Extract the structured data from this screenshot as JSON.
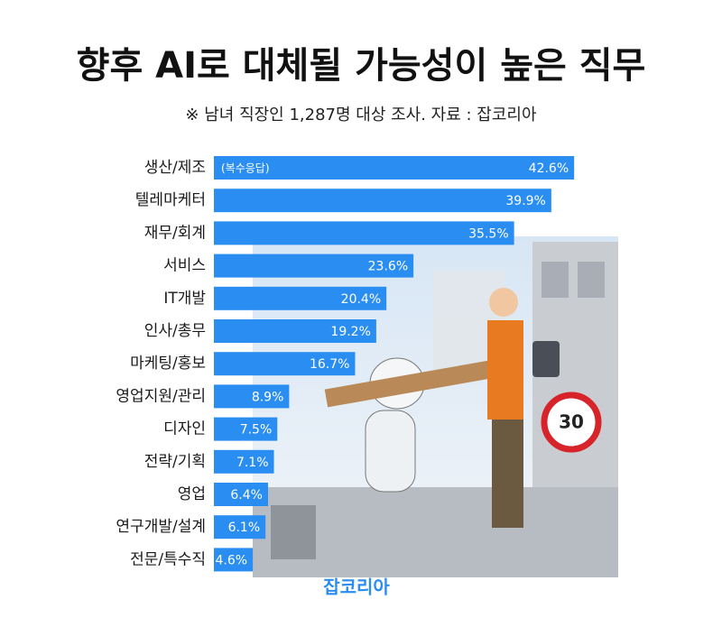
{
  "chart_data": {
    "type": "bar",
    "orientation": "horizontal",
    "title": "향후 AI로 대체될 가능성이 높은 직무",
    "subtitle": "※ 남녀 직장인 1,287명 대상 조사. 자료 : 잡코리아",
    "annotation": "(복수응답)",
    "brand": "잡코리아",
    "categories": [
      "생산/제조",
      "텔레마케터",
      "재무/회계",
      "서비스",
      "IT개발",
      "인사/총무",
      "마케팅/홍보",
      "영업지원/관리",
      "디자인",
      "전략/기획",
      "영업",
      "연구개발/설계",
      "전문/특수직"
    ],
    "values": [
      42.6,
      39.9,
      35.5,
      23.6,
      20.4,
      19.2,
      16.7,
      8.9,
      7.5,
      7.1,
      6.4,
      6.1,
      4.6
    ],
    "value_labels": [
      "42.6%",
      "39.9%",
      "35.5%",
      "23.6%",
      "20.4%",
      "19.2%",
      "16.7%",
      "8.9%",
      "7.5%",
      "7.1%",
      "6.4%",
      "6.1%",
      "4.6%"
    ],
    "color": "#2a8df2",
    "illustration_sign": "30"
  }
}
